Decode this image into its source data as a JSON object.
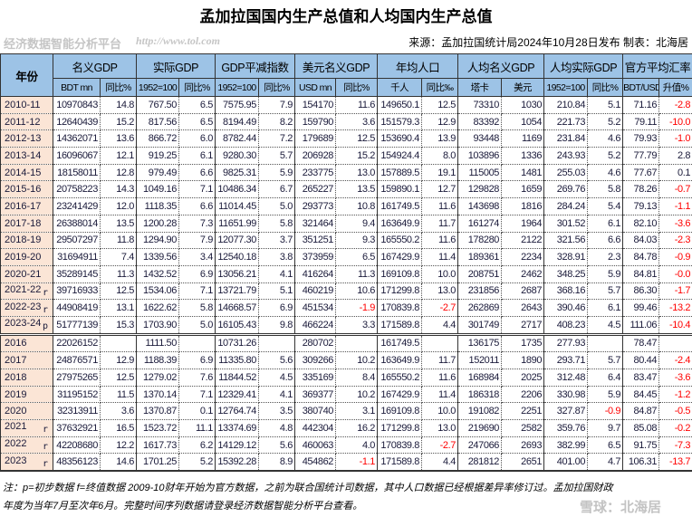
{
  "title": "孟加拉国国内生产总值和人均国内生产总值",
  "source": "来源：孟加拉国统计局2024年10月28日发布 制表：北海居",
  "header": {
    "year": "年份",
    "groups": [
      {
        "label": "名义GDP",
        "sub": [
          "BDT mn",
          "同比%"
        ]
      },
      {
        "label": "实际GDP",
        "sub": [
          "1952=100",
          "同比%"
        ]
      },
      {
        "label": "GDP平减指数",
        "sub": [
          "1952=100",
          "同比%"
        ]
      },
      {
        "label": "美元名义GDP",
        "sub": [
          "USD mn",
          "同比%"
        ]
      },
      {
        "label": "年均人口",
        "sub": [
          "千人",
          "同比‰"
        ]
      },
      {
        "label": "人均名义GDP",
        "sub": [
          "塔卡",
          "美元"
        ]
      },
      {
        "label": "人均实际GDP",
        "sub": [
          "1952=100",
          "同比%"
        ]
      },
      {
        "label": "官方平均汇率",
        "sub": [
          "BDT/USD",
          "升值%"
        ]
      }
    ]
  },
  "fiscal_rows": [
    {
      "year": "2010-11",
      "mark": "",
      "v": [
        "10970843",
        "14.8",
        "767.50",
        "6.5",
        "7575.95",
        "7.9",
        "154170",
        "11.6",
        "149650.1",
        "12.5",
        "73310",
        "1030",
        "210.84",
        "5.1",
        "71.16",
        "-2.8"
      ]
    },
    {
      "year": "2011-12",
      "mark": "",
      "v": [
        "12640439",
        "15.2",
        "817.56",
        "6.5",
        "8194.49",
        "8.2",
        "159790",
        "3.6",
        "151579.3",
        "12.9",
        "83392",
        "1054",
        "221.73",
        "5.2",
        "79.11",
        "-10.0"
      ]
    },
    {
      "year": "2012-13",
      "mark": "",
      "v": [
        "14362071",
        "13.6",
        "866.72",
        "6.0",
        "8782.44",
        "7.2",
        "179689",
        "12.5",
        "153690.4",
        "13.9",
        "93448",
        "1169",
        "231.84",
        "4.6",
        "79.93",
        "-1.0"
      ]
    },
    {
      "year": "2013-14",
      "mark": "",
      "v": [
        "16096067",
        "12.1",
        "919.25",
        "6.1",
        "9280.30",
        "5.7",
        "206928",
        "15.2",
        "154924.4",
        "8.0",
        "103896",
        "1336",
        "243.93",
        "5.2",
        "77.79",
        "2.8"
      ]
    },
    {
      "year": "2014-15",
      "mark": "",
      "v": [
        "18158011",
        "12.8",
        "979.49",
        "6.6",
        "9825.31",
        "5.9",
        "233775",
        "13.0",
        "157889.5",
        "19.1",
        "115005",
        "1481",
        "255.03",
        "4.6",
        "77.67",
        "0.1"
      ]
    },
    {
      "year": "2015-16",
      "mark": "",
      "v": [
        "20758223",
        "14.3",
        "1049.16",
        "7.1",
        "10486.34",
        "6.7",
        "265227",
        "13.5",
        "159890.1",
        "12.7",
        "129828",
        "1659",
        "269.76",
        "5.8",
        "78.26",
        "-0.7"
      ]
    },
    {
      "year": "2016-17",
      "mark": "",
      "v": [
        "23241429",
        "12.0",
        "1118.35",
        "6.6",
        "11014.45",
        "5.0",
        "293773",
        "10.8",
        "161749.5",
        "11.6",
        "143698",
        "1816",
        "284.24",
        "5.4",
        "79.13",
        "-1.1"
      ]
    },
    {
      "year": "2017-18",
      "mark": "",
      "v": [
        "26388014",
        "13.5",
        "1200.28",
        "7.3",
        "11651.99",
        "5.8",
        "321464",
        "9.4",
        "163649.9",
        "11.7",
        "161274",
        "1964",
        "301.52",
        "6.1",
        "82.10",
        "-3.6"
      ]
    },
    {
      "year": "2018-19",
      "mark": "",
      "v": [
        "29507297",
        "11.8",
        "1294.90",
        "7.9",
        "12077.30",
        "3.7",
        "351251",
        "9.3",
        "165550.2",
        "11.6",
        "178280",
        "2122",
        "321.56",
        "6.6",
        "84.03",
        "-2.3"
      ]
    },
    {
      "year": "2019-20",
      "mark": "",
      "v": [
        "31694911",
        "7.4",
        "1339.56",
        "3.4",
        "12540.18",
        "3.8",
        "373959",
        "6.5",
        "167429.9",
        "11.4",
        "189361",
        "2234",
        "328.91",
        "2.3",
        "84.78",
        "-0.9"
      ]
    },
    {
      "year": "2020-21",
      "mark": "",
      "v": [
        "35289145",
        "11.3",
        "1432.52",
        "6.9",
        "13056.21",
        "4.1",
        "416264",
        "11.3",
        "169109.8",
        "10.0",
        "208751",
        "2462",
        "348.25",
        "5.9",
        "84.81",
        "-0.0"
      ]
    },
    {
      "year": "2021-22",
      "mark": "r",
      "v": [
        "39716933",
        "12.5",
        "1534.06",
        "7.1",
        "13721.79",
        "5.1",
        "460219",
        "10.6",
        "171299.8",
        "13.0",
        "231856",
        "2687",
        "368.16",
        "5.7",
        "86.30",
        "-1.7"
      ]
    },
    {
      "year": "2022-23",
      "mark": "r",
      "v": [
        "44908419",
        "13.1",
        "1622.62",
        "5.8",
        "14668.57",
        "6.9",
        "451534",
        "-1.9",
        "170839.8",
        "-2.7",
        "262869",
        "2643",
        "390.46",
        "6.1",
        "99.46",
        "-13.2"
      ]
    },
    {
      "year": "2023-24",
      "mark": "p",
      "v": [
        "51777139",
        "15.3",
        "1703.90",
        "5.0",
        "16105.43",
        "9.8",
        "466224",
        "3.3",
        "171589.8",
        "4.4",
        "301749",
        "2717",
        "408.23",
        "4.5",
        "111.06",
        "-10.4"
      ]
    }
  ],
  "calendar_rows": [
    {
      "year": "2016",
      "mark": "",
      "v": [
        "22026152",
        "",
        "1111.50",
        "",
        "10731.26",
        "",
        "280702",
        "",
        "161749.5",
        "",
        "136175",
        "1735",
        "277.93",
        "",
        "78.47",
        ""
      ]
    },
    {
      "year": "2017",
      "mark": "",
      "v": [
        "24876571",
        "12.9",
        "1188.39",
        "6.9",
        "11335.80",
        "5.6",
        "309266",
        "10.2",
        "163649.9",
        "11.7",
        "152011",
        "1890",
        "293.71",
        "5.7",
        "80.44",
        "-2.4"
      ]
    },
    {
      "year": "2018",
      "mark": "",
      "v": [
        "27975265",
        "12.5",
        "1279.02",
        "7.6",
        "11844.52",
        "4.5",
        "335169",
        "8.4",
        "165550.2",
        "11.6",
        "168984",
        "2025",
        "312.48",
        "6.4",
        "83.47",
        "-3.6"
      ]
    },
    {
      "year": "2019",
      "mark": "",
      "v": [
        "31195152",
        "11.5",
        "1370.14",
        "7.1",
        "12329.41",
        "4.1",
        "369377",
        "10.2",
        "167429.9",
        "11.4",
        "186318",
        "2206",
        "330.98",
        "5.9",
        "84.45",
        "-1.2"
      ]
    },
    {
      "year": "2020",
      "mark": "",
      "v": [
        "32313911",
        "3.6",
        "1370.87",
        "0.1",
        "12764.74",
        "3.5",
        "380740",
        "3.1",
        "169109.8",
        "10.0",
        "191082",
        "2251",
        "327.87",
        "-0.9",
        "84.87",
        "-0.5"
      ]
    },
    {
      "year": "2021",
      "mark": "r",
      "v": [
        "37632921",
        "16.5",
        "1523.72",
        "11.1",
        "13374.69",
        "4.8",
        "442304",
        "16.2",
        "171299.8",
        "13.0",
        "219690",
        "2582",
        "359.76",
        "9.7",
        "85.08",
        "-0.2"
      ]
    },
    {
      "year": "2022",
      "mark": "r",
      "v": [
        "42208680",
        "12.2",
        "1617.73",
        "6.2",
        "14129.12",
        "5.6",
        "460063",
        "4.0",
        "170839.8",
        "-2.7",
        "247066",
        "2693",
        "382.99",
        "6.5",
        "91.75",
        "-7.3"
      ]
    },
    {
      "year": "2023",
      "mark": "r",
      "v": [
        "48356123",
        "14.6",
        "1701.25",
        "5.2",
        "15392.28",
        "8.9",
        "454862",
        "-1.1",
        "171589.8",
        "4.4",
        "281812",
        "2651",
        "401.00",
        "4.7",
        "106.31",
        "-13.7"
      ]
    }
  ],
  "notes": [
    "注：p=初步数据 f=终值数据 2009-10财年开始为官方数据，之前为联合国统计司数据，其中人口数据已经根据差异率修订过。孟加拉国财政",
    "年度为当年7月至次年6月。完整时间序列数据请登录经济数据智能分析平台查看。"
  ],
  "watermarks": {
    "center": "经济数据智能分析平台",
    "url": "http://www.tol.com",
    "corner": "雪球：北海居"
  },
  "colors": {
    "header": "#9dc3e6",
    "year_cell": "#fbe5d6",
    "negative": "#ff0000"
  }
}
